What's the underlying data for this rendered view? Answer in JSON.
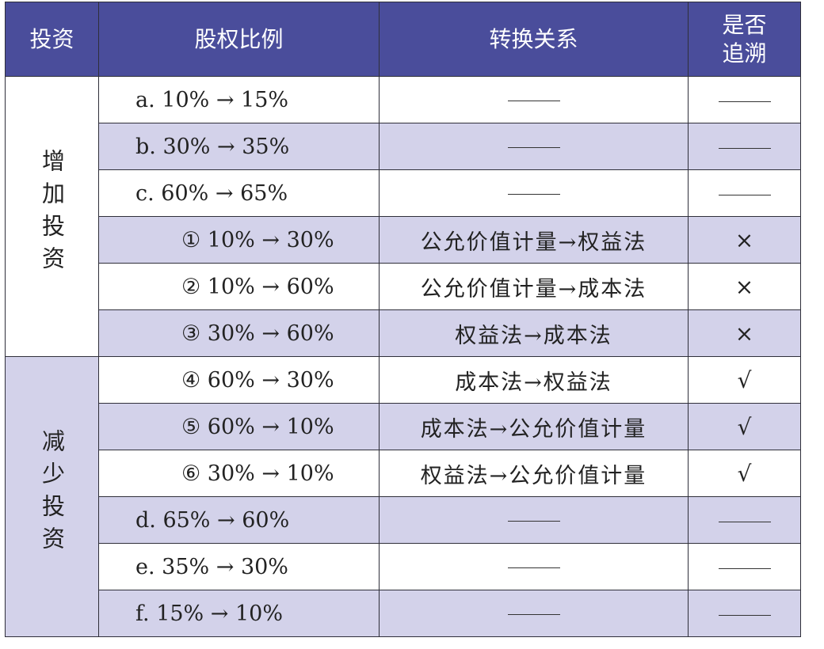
{
  "headers": {
    "investment": "投资",
    "equity_ratio": "股权比例",
    "conversion": "转换关系",
    "retro_line1": "是否",
    "retro_line2": "追溯"
  },
  "groups": {
    "increase": "增加投资",
    "decrease": "减少投资"
  },
  "rows": [
    {
      "ratio": "a. 10% → 15%",
      "relation": "",
      "traced": ""
    },
    {
      "ratio": "b. 30% → 35%",
      "relation": "",
      "traced": ""
    },
    {
      "ratio": "c. 60% → 65%",
      "relation": "",
      "traced": ""
    },
    {
      "ratio": "① 10% → 30%",
      "relation": "公允价值计量→权益法",
      "traced": "×"
    },
    {
      "ratio": "② 10% → 60%",
      "relation": "公允价值计量→成本法",
      "traced": "×"
    },
    {
      "ratio": "③ 30% → 60%",
      "relation": "权益法→成本法",
      "traced": "×"
    },
    {
      "ratio": "④ 60% → 30%",
      "relation": "成本法→权益法",
      "traced": "√"
    },
    {
      "ratio": "⑤ 60% → 10%",
      "relation": "成本法→公允价值计量",
      "traced": "√"
    },
    {
      "ratio": "⑥ 30% → 10%",
      "relation": "权益法→公允价值计量",
      "traced": "√"
    },
    {
      "ratio": "d. 65% → 60%",
      "relation": "",
      "traced": ""
    },
    {
      "ratio": "e. 35% → 30%",
      "relation": "",
      "traced": ""
    },
    {
      "ratio": "f. 15% → 10%",
      "relation": "",
      "traced": ""
    }
  ],
  "colors": {
    "header_bg": "#4a4d9b",
    "shade_bg": "#d3d2ea",
    "border": "#2f2f3a"
  }
}
